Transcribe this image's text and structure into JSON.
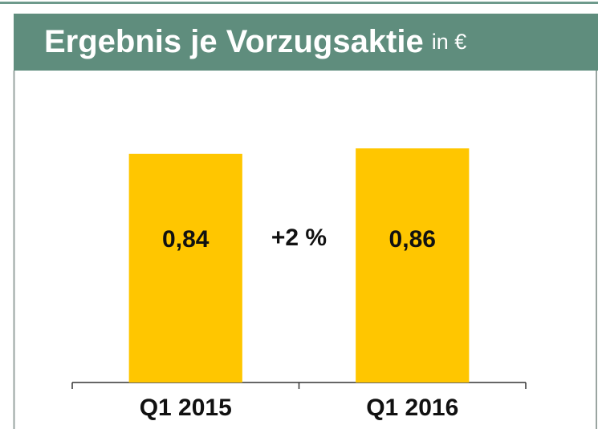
{
  "chart_data": {
    "type": "bar",
    "title": "Ergebnis je Vorzugsaktie",
    "subtitle": "in €",
    "categories": [
      "Q1 2015",
      "Q1 2016"
    ],
    "values": [
      0.84,
      0.86
    ],
    "value_labels": [
      "0,84",
      "0,86"
    ],
    "color": "#ffc600",
    "ylim": [
      0,
      1
    ],
    "annotation": "+2 %"
  }
}
